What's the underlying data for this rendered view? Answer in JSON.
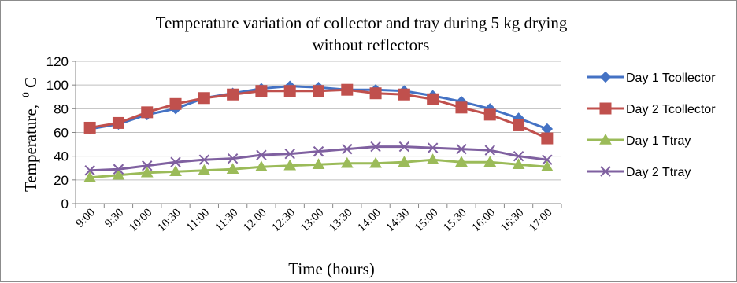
{
  "chart_data": {
    "type": "line",
    "title_line1": "Temperature variation of collector and tray during 5 kg  drying",
    "title_line2": "without reflectors",
    "xlabel": "Time (hours)",
    "ylabel": "Temperature,",
    "ylabel_sup": "0",
    "ylabel_unit": "C",
    "ylim": [
      0,
      120
    ],
    "yticks": [
      0,
      20,
      40,
      60,
      80,
      100,
      120
    ],
    "grid": true,
    "legend_position": "right",
    "categories": [
      "9:00",
      "9:30",
      "10:00",
      "10:30",
      "11:00",
      "11:30",
      "12:00",
      "12:30",
      "13:00",
      "13:30",
      "14:00",
      "14:30",
      "15:00",
      "15:30",
      "16:00",
      "16:30",
      "17:00"
    ],
    "series": [
      {
        "name": "Day 1 Tcollector",
        "color": "#4472C4",
        "marker": "diamond",
        "values": [
          63,
          67,
          75,
          80,
          89,
          93,
          97,
          99,
          98,
          96,
          96,
          95,
          91,
          86,
          80,
          72,
          63
        ]
      },
      {
        "name": "Day 2 Tcollector",
        "color": "#C0504D",
        "marker": "square",
        "values": [
          64,
          68,
          77,
          84,
          89,
          92,
          95,
          95,
          95,
          96,
          93,
          92,
          88,
          81,
          75,
          66,
          55
        ]
      },
      {
        "name": "Day 1 Ttray",
        "color": "#9BBB59",
        "marker": "triangle",
        "values": [
          22,
          24,
          26,
          27,
          28,
          29,
          31,
          32,
          33,
          34,
          34,
          35,
          37,
          35,
          35,
          33,
          31
        ]
      },
      {
        "name": "Day 2 Ttray",
        "color": "#7F60A0",
        "marker": "x",
        "values": [
          28,
          29,
          32,
          35,
          37,
          38,
          41,
          42,
          44,
          46,
          48,
          48,
          47,
          46,
          45,
          40,
          37
        ]
      }
    ]
  }
}
